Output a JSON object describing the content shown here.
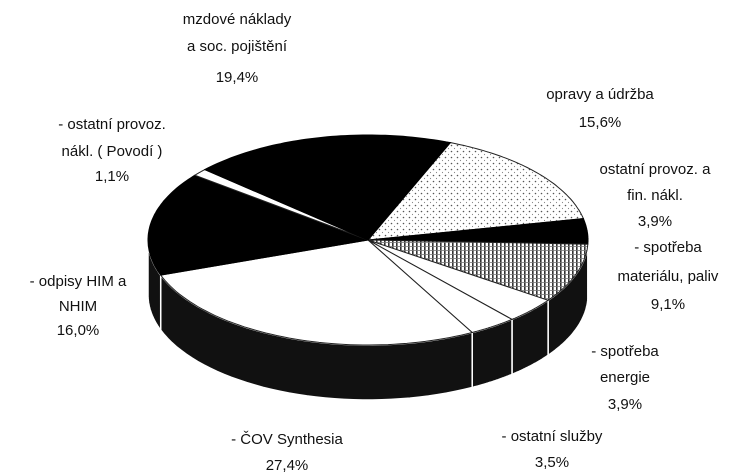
{
  "chart_data": {
    "type": "pie3d",
    "categories": [
      [
        "opravy a údržba"
      ],
      [
        "ostatní provoz. a",
        "fin. nákl."
      ],
      [
        "- spotřeba",
        "materiálu, paliv"
      ],
      [
        "- spotřeba",
        "energie"
      ],
      [
        "- ostatní služby"
      ],
      [
        "- ČOV Synthesia"
      ],
      [
        "- odpisy HIM a",
        "NHIM"
      ],
      [
        "- ostatní provoz.",
        "nákl. ( Povodí )"
      ],
      [
        "mzdové náklady",
        "a soc. pojištění"
      ]
    ],
    "values": [
      15.6,
      3.9,
      9.1,
      3.9,
      3.5,
      27.4,
      16.0,
      1.1,
      19.4
    ],
    "value_labels": [
      "15,6%",
      "3,9%",
      "9,1%",
      "3,9%",
      "3,5%",
      "27,4%",
      "16,0%",
      "1,1%",
      "19,4%"
    ],
    "fills": [
      "dots",
      "black",
      "hatch",
      "white",
      "white",
      "white",
      "black",
      "white",
      "black"
    ]
  }
}
